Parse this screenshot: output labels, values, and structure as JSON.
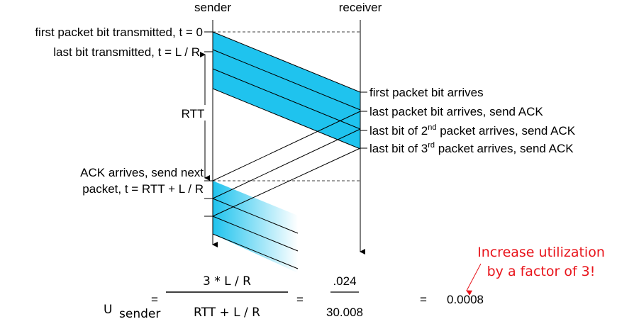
{
  "headers": {
    "sender": "sender",
    "receiver": "receiver"
  },
  "sender_events": [
    "first packet bit transmitted, t = 0",
    "last bit transmitted, t = L / R",
    "ACK arrives, send next",
    "packet, t = RTT + L / R"
  ],
  "rtt": "RTT",
  "receiver_events": [
    {
      "text": "first packet bit arrives"
    },
    {
      "text": "last packet bit arrives, send ACK"
    },
    {
      "text": "last bit of 2",
      "sup": "nd",
      "rest": " packet arrives, send ACK"
    },
    {
      "text": "last bit of 3",
      "sup": "rd",
      "rest": " packet arrives, send ACK"
    }
  ],
  "note": [
    "Increase utilization",
    "by a factor of 3!"
  ],
  "formula": {
    "symbol": "U",
    "subscript": "sender",
    "eq1": "=",
    "numerator": "3 * L / R",
    "denominator": "RTT + L / R",
    "eq2": "=",
    "num2": ".024",
    "den2": "30.008",
    "eq3": "=",
    "result": "0.0008"
  }
}
